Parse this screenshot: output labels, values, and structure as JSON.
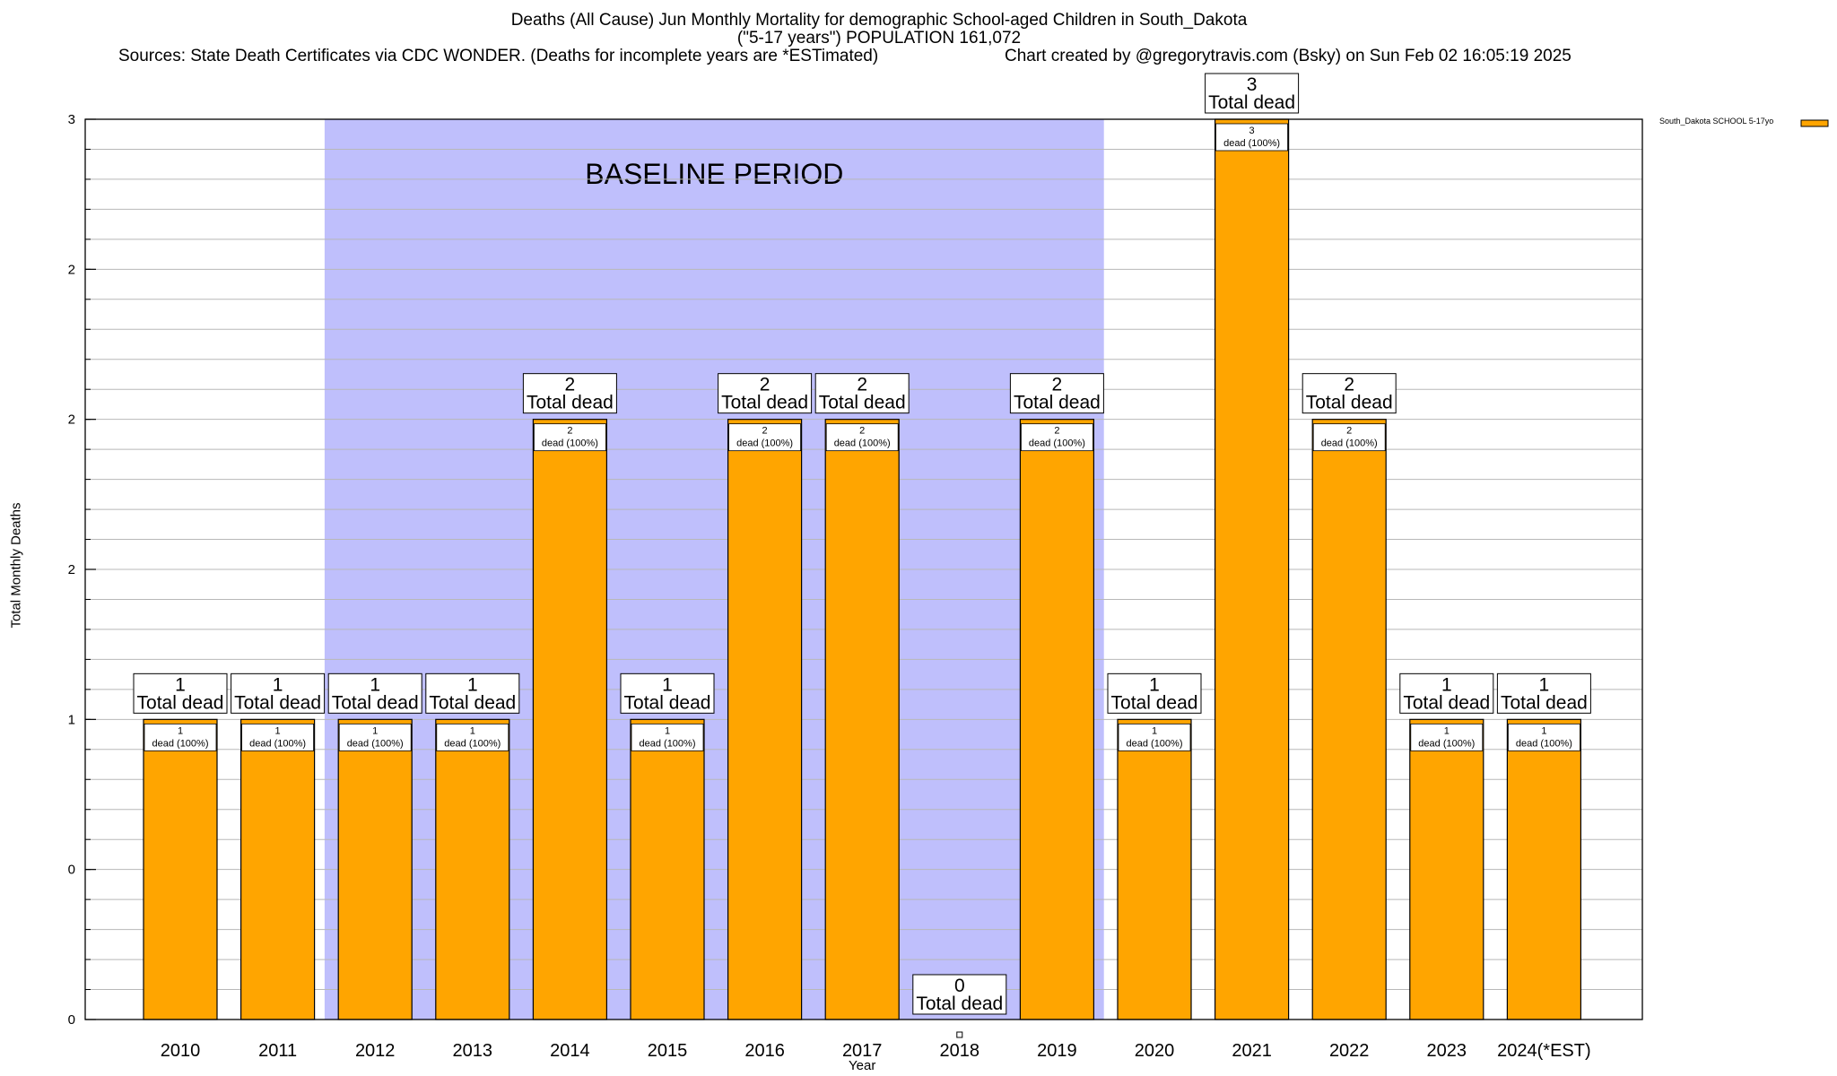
{
  "chart_data": {
    "type": "bar",
    "title": "Deaths (All Cause) Jun Monthly Mortality for demographic School-aged Children in South_Dakota",
    "subtitle": "(\"5-17 years\") POPULATION 161,072",
    "sources": "Sources: State Death Certificates via CDC WONDER. (Deaths for incomplete years are *ESTimated)",
    "credit": "Chart created by @gregorytravis.com (Bsky) on Sun Feb 02 16:05:19 2025",
    "xlabel": "Year",
    "ylabel": "Total Monthly Deaths",
    "ylim": [
      0,
      3
    ],
    "ytick_values": [
      0,
      0.5,
      1,
      1.5,
      2,
      2.5,
      3
    ],
    "ytick_labels": [
      "0",
      "0",
      "1",
      "2",
      "2",
      "2",
      "3"
    ],
    "grid": true,
    "legend_position": "top-right",
    "categories": [
      "2010",
      "2011",
      "2012",
      "2013",
      "2014",
      "2015",
      "2016",
      "2017",
      "2018",
      "2019",
      "2020",
      "2021",
      "2022",
      "2023",
      "2024(*EST)"
    ],
    "series": [
      {
        "name": "South_Dakota SCHOOL 5-17yo",
        "color": "#ffa500",
        "values": [
          1,
          1,
          1,
          1,
          2,
          1,
          2,
          2,
          0,
          2,
          1,
          3,
          2,
          1,
          1
        ]
      }
    ],
    "total_label_suffix": "Total dead",
    "inner_label_suffix": "dead (100%)",
    "baseline": {
      "label": "BASELINE PERIOD",
      "start": "2012",
      "end": "2019",
      "color": "#bfbffc"
    }
  }
}
